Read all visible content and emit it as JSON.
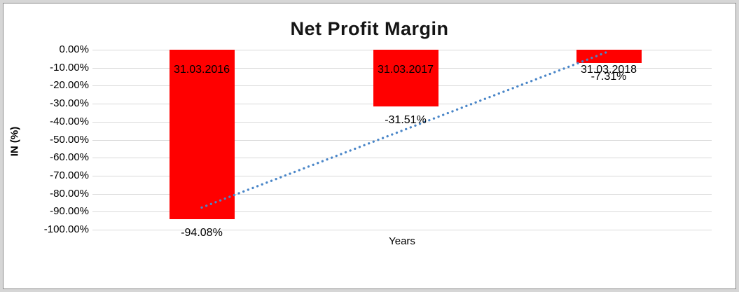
{
  "chart_data": {
    "type": "bar",
    "title": "Net Profit Margin",
    "xlabel": "Years",
    "ylabel": "IN (%)",
    "categories": [
      "31.03.2016",
      "31.03.2017",
      "31.03.2018"
    ],
    "values": [
      -94.08,
      -31.51,
      -7.31
    ],
    "data_labels": [
      "-94.08%",
      "-31.51%",
      "-7.31%"
    ],
    "y_ticks": [
      "0.00%",
      "-10.00%",
      "-20.00%",
      "-30.00%",
      "-40.00%",
      "-50.00%",
      "-60.00%",
      "-70.00%",
      "-80.00%",
      "-90.00%",
      "-100.00%"
    ],
    "ylim": [
      -100,
      0
    ],
    "gridlines": true,
    "legend": "none",
    "bar_color": "#ff0000",
    "gridline_color": "#d9d9d9",
    "trendline": {
      "type": "linear",
      "style": "dotted",
      "color": "#4a86c8"
    }
  }
}
